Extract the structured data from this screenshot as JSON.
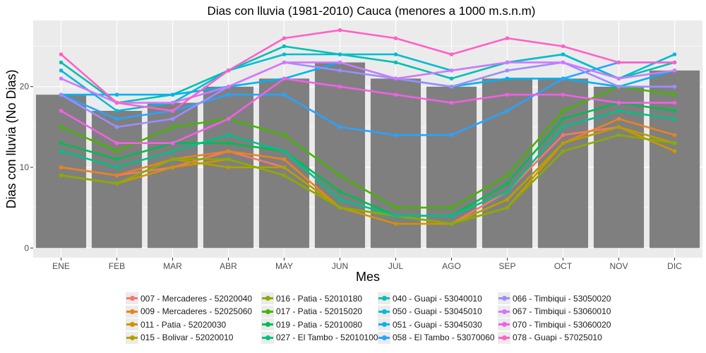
{
  "chart_data": {
    "type": "bar+line",
    "title": "Dias con lluvia (1981-2010) Cauca (menores a 1000 m.s.n.m)",
    "xlabel": "Mes",
    "ylabel": "Dias con lluvia (No Dias)",
    "categories": [
      "ENE",
      "FEB",
      "MAR",
      "ABR",
      "MAY",
      "JUN",
      "JUL",
      "AGO",
      "SEP",
      "OCT",
      "NOV",
      "DIC"
    ],
    "y_ticks": [
      0,
      10,
      20
    ],
    "ylim": [
      -1.2,
      28.2
    ],
    "grid": true,
    "legend_position": "bottom",
    "bar_color": "#7f7f7f",
    "bars": [
      19,
      17,
      18,
      20,
      21,
      23,
      21,
      20,
      21,
      21,
      20,
      22
    ],
    "series": [
      {
        "name": "007 - Mercaderes - 52020040",
        "color": "#F8766D",
        "values": [
          10,
          9,
          10,
          12,
          10,
          5,
          4,
          3,
          7,
          14,
          15,
          13
        ]
      },
      {
        "name": "009 - Mercaderes - 52025060",
        "color": "#E7851E",
        "values": [
          10,
          9,
          11,
          12,
          11,
          5,
          4,
          3,
          6,
          13,
          16,
          14
        ]
      },
      {
        "name": "011 - Patia - 52020030",
        "color": "#D09400",
        "values": [
          9,
          8,
          10,
          11,
          9,
          5,
          3,
          3,
          5,
          13,
          15,
          12
        ]
      },
      {
        "name": "015 - Bolivar - 52020010",
        "color": "#B2A100",
        "values": [
          9,
          8,
          11,
          10,
          10,
          5,
          4,
          3,
          6,
          13,
          15,
          13
        ]
      },
      {
        "name": "016 - Patia - 52010180",
        "color": "#89AC00",
        "values": [
          9,
          8,
          11,
          11,
          9,
          5,
          4,
          3,
          5,
          12,
          14,
          13
        ]
      },
      {
        "name": "017 - Patia - 52015020",
        "color": "#45B500",
        "values": [
          15,
          12,
          15,
          16,
          14,
          9,
          5,
          5,
          9,
          17,
          20,
          19
        ]
      },
      {
        "name": "019 - Patia - 52010080",
        "color": "#00BC51",
        "values": [
          13,
          11,
          13,
          13,
          12,
          7,
          4,
          4,
          8,
          16,
          18,
          17
        ]
      },
      {
        "name": "027 - El Tambo - 52010100",
        "color": "#00C087",
        "values": [
          12,
          10,
          12,
          14,
          12,
          6,
          4,
          4,
          7,
          15,
          17,
          16
        ]
      },
      {
        "name": "040 - Guapi - 53040010",
        "color": "#00C0B2",
        "values": [
          23,
          18,
          19,
          22,
          25,
          24,
          23,
          21,
          23,
          24,
          21,
          23
        ]
      },
      {
        "name": "050 - Guapi - 53045010",
        "color": "#00BCD6",
        "values": [
          22,
          17,
          18,
          22,
          24,
          24,
          24,
          22,
          23,
          24,
          21,
          24
        ]
      },
      {
        "name": "051 - Guapi - 53045030",
        "color": "#00B3F2",
        "values": [
          19,
          19,
          19,
          20,
          21,
          23,
          21,
          20,
          21,
          21,
          20,
          22
        ]
      },
      {
        "name": "058 - El Tambo - 53070060",
        "color": "#29A3FF",
        "values": [
          19,
          16,
          17,
          19,
          19,
          15,
          14,
          14,
          17,
          21,
          23,
          23
        ]
      },
      {
        "name": "066 - Timbiqui - 53050020",
        "color": "#9C8DFF",
        "values": [
          19,
          15,
          16,
          20,
          23,
          22,
          21,
          20,
          22,
          23,
          20,
          20
        ]
      },
      {
        "name": "067 - Timbiqui - 53060010",
        "color": "#D277FF",
        "values": [
          21,
          18,
          18,
          20,
          23,
          23,
          21,
          22,
          23,
          23,
          21,
          22
        ]
      },
      {
        "name": "070 - Timbiqui - 53060020",
        "color": "#F161E4",
        "values": [
          17,
          13,
          13,
          16,
          21,
          20,
          19,
          18,
          19,
          19,
          18,
          18
        ]
      },
      {
        "name": "078 - Guapi - 57025010",
        "color": "#FF61C7",
        "values": [
          24,
          18,
          17,
          22,
          26,
          27,
          26,
          24,
          26,
          25,
          23,
          23
        ]
      }
    ]
  }
}
